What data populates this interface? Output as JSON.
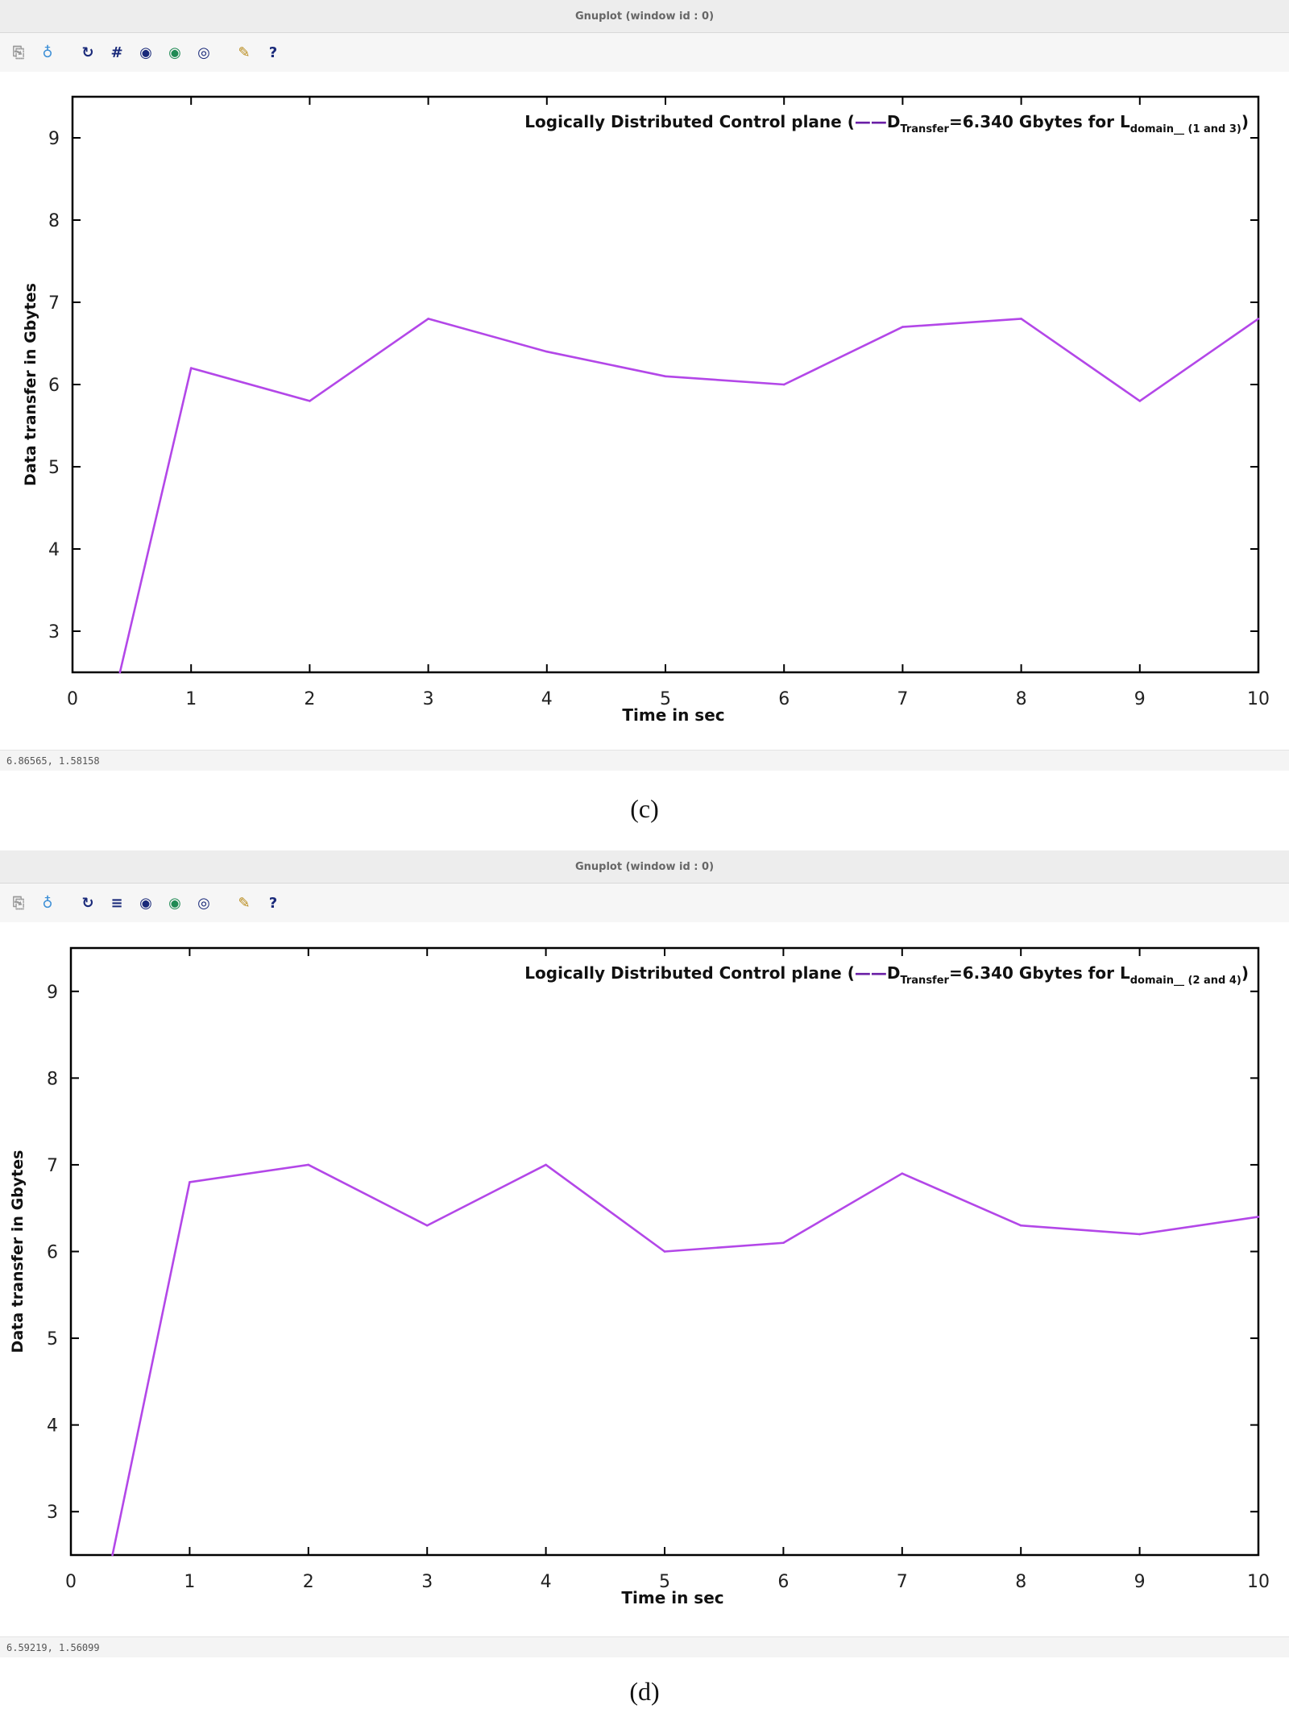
{
  "panels": [
    {
      "window_title": "Gnuplot (window id : 0)",
      "toolbar": [
        "copy-icon",
        "print-icon",
        "replot-icon",
        "grid-icon",
        "zoom-prev-icon",
        "zoom-next-icon",
        "unzoom-icon",
        "settings-icon",
        "help-icon"
      ],
      "status_text": "6.86565, 1.58158",
      "caption": "(c)",
      "legend": {
        "prefix": "Logically Distributed Control plane (",
        "d": "D",
        "d_sub": "Transfer",
        "mid": "=6.340 Gbytes for L",
        "l_sub": "domain",
        "tail_sub": "(1 and 3)",
        "suffix": ")"
      }
    },
    {
      "window_title": "Gnuplot (window id : 0)",
      "toolbar": [
        "copy-icon",
        "print-icon",
        "replot-icon",
        "grid-icon",
        "zoom-prev-icon",
        "zoom-next-icon",
        "unzoom-icon",
        "settings-icon",
        "help-icon"
      ],
      "status_text": "6.59219, 1.56099",
      "caption": "(d)",
      "legend": {
        "prefix": "Logically Distributed Control plane (",
        "d": "D",
        "d_sub": "Transfer",
        "mid": "=6.340 Gbytes for L",
        "l_sub": "domain",
        "tail_sub": "(2 and 4)",
        "suffix": ")"
      }
    }
  ],
  "chart_data": [
    {
      "type": "line",
      "xlabel": "Time in sec",
      "ylabel": "Data transfer in Gbytes",
      "xlim": [
        0,
        10
      ],
      "ylim": [
        2.5,
        9.5
      ],
      "xticks": [
        0,
        1,
        2,
        3,
        4,
        5,
        6,
        7,
        8,
        9,
        10
      ],
      "yticks": [
        3,
        4,
        5,
        6,
        7,
        8,
        9
      ],
      "grid": false,
      "legend_position": "top-right",
      "color": "#b347e8",
      "legend_line_color": "#6a1fa6",
      "x": [
        0.4,
        1,
        2,
        3,
        4,
        5,
        6,
        7,
        8,
        9,
        10
      ],
      "y": [
        2.5,
        6.2,
        5.8,
        6.8,
        6.4,
        6.1,
        6.0,
        6.7,
        6.8,
        5.8,
        6.8
      ]
    },
    {
      "type": "line",
      "xlabel": "Time in sec",
      "ylabel": "Data transfer in Gbytes",
      "xlim": [
        0,
        10
      ],
      "ylim": [
        2.5,
        9.5
      ],
      "xticks": [
        0,
        1,
        2,
        3,
        4,
        5,
        6,
        7,
        8,
        9,
        10
      ],
      "yticks": [
        3,
        4,
        5,
        6,
        7,
        8,
        9
      ],
      "grid": false,
      "legend_position": "top-right",
      "color": "#b347e8",
      "legend_line_color": "#6a1fa6",
      "x": [
        0.35,
        1,
        2,
        3,
        4,
        5,
        6,
        7,
        8,
        9,
        10
      ],
      "y": [
        2.5,
        6.8,
        7.0,
        6.3,
        7.0,
        6.0,
        6.1,
        6.9,
        6.3,
        6.2,
        6.4
      ]
    }
  ]
}
